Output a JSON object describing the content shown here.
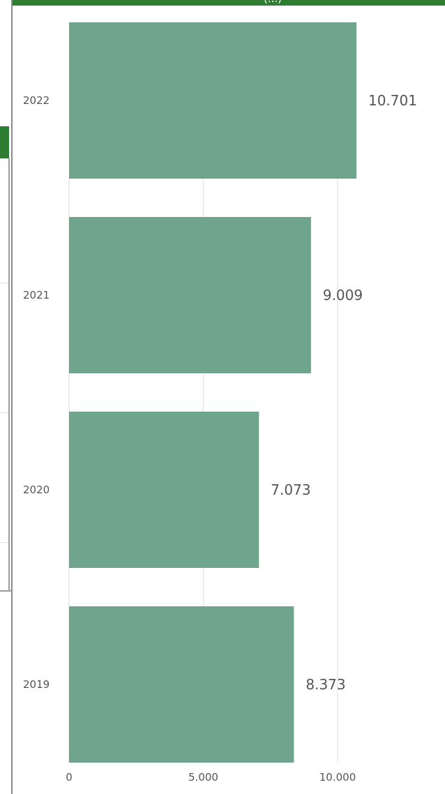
{
  "header": {
    "title_fragment": "(...)"
  },
  "colors": {
    "bar": "#6fa58c",
    "header": "#2e7d32",
    "grid": "#e6e6e6",
    "text": "#555555"
  },
  "chart_data": {
    "type": "bar",
    "orientation": "horizontal",
    "categories": [
      "2022",
      "2021",
      "2020",
      "2019"
    ],
    "values": [
      10701,
      9009,
      7073,
      8373
    ],
    "value_labels": [
      "10.701",
      "9.009",
      "7.073",
      "8.373"
    ],
    "xlim": [
      0,
      13000
    ],
    "x_ticks": [
      0,
      5000,
      10000
    ],
    "x_tick_labels": [
      "0",
      "5.000",
      "10.000"
    ],
    "grid": true,
    "legend": "none"
  }
}
